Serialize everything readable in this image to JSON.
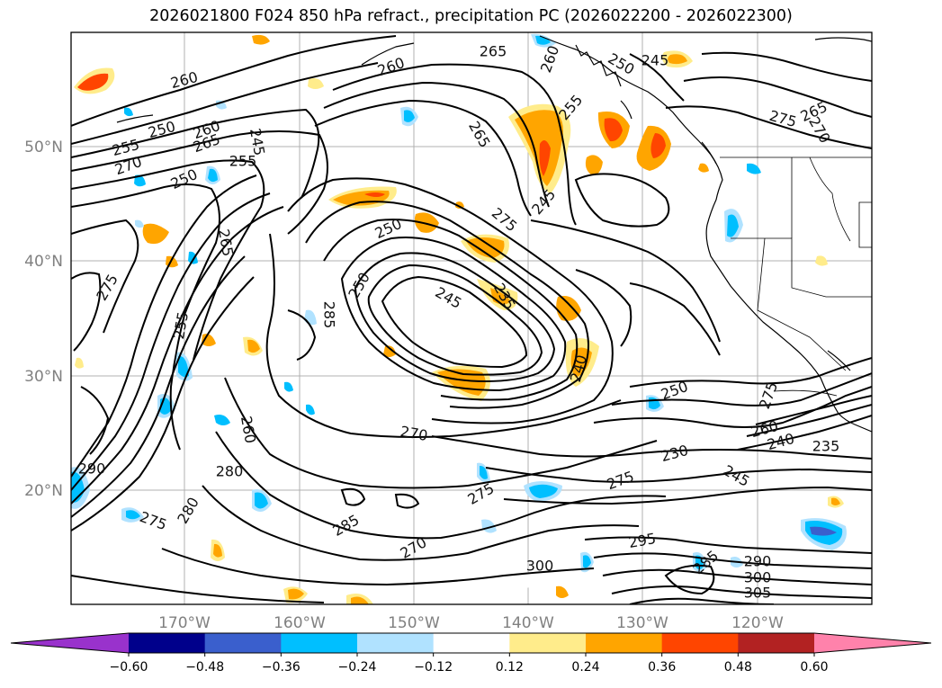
{
  "title": "2026021800 F024 850 hPa refract., precipitation PC (2026022200 - 2026022300)",
  "map": {
    "lon_ticks": [
      "170°W",
      "160°W",
      "150°W",
      "140°W",
      "130°W",
      "120°W"
    ],
    "lat_ticks": [
      "50°N",
      "40°N",
      "30°N",
      "20°N"
    ],
    "contour_labels": [
      "260",
      "265",
      "260",
      "250",
      "255",
      "260",
      "265",
      "270",
      "255",
      "250",
      "245",
      "260",
      "250",
      "245",
      "275",
      "265",
      "270",
      "255",
      "265",
      "250",
      "245",
      "275",
      "250",
      "245",
      "235",
      "240",
      "265",
      "255",
      "275",
      "285",
      "260",
      "280",
      "290",
      "275",
      "280",
      "285",
      "270",
      "275",
      "270",
      "245",
      "250",
      "230",
      "235",
      "240",
      "260",
      "275",
      "275",
      "295",
      "300",
      "285",
      "290",
      "300",
      "305"
    ]
  },
  "colorbar": {
    "colors": [
      "#9932cc",
      "#00008b",
      "#3a5fcd",
      "#00bfff",
      "#b0e2ff",
      "#ffffff",
      "#ffec8b",
      "#ffa500",
      "#ff4500",
      "#b22222",
      "#ff82ab"
    ],
    "tick_labels": [
      "−0.60",
      "−0.48",
      "−0.36",
      "−0.24",
      "−0.12",
      "0.12",
      "0.24",
      "0.36",
      "0.48",
      "0.60"
    ]
  }
}
